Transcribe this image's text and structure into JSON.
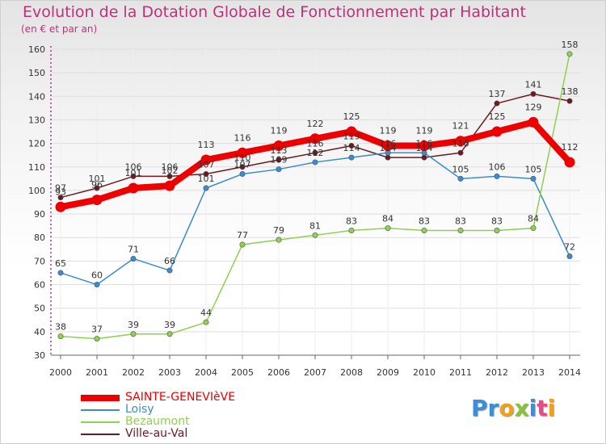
{
  "chart_data": {
    "type": "line",
    "title": "Evolution de la Dotation Globale de Fonctionnement par Habitant",
    "subtitle": "(en € et par an)",
    "x": [
      "2000",
      "2001",
      "2002",
      "2003",
      "2004",
      "2005",
      "2006",
      "2007",
      "2008",
      "2009",
      "2010",
      "2011",
      "2012",
      "2013",
      "2014"
    ],
    "ylim": [
      30,
      160
    ],
    "yticks": [
      30,
      40,
      50,
      60,
      70,
      80,
      90,
      100,
      110,
      120,
      130,
      140,
      150,
      160
    ],
    "series": [
      {
        "name": "Ville-au-Val",
        "color": "#6b1a22",
        "values": [
          97,
          101,
          106,
          106,
          107,
          110,
          113,
          116,
          119,
          114,
          114,
          116,
          137,
          141,
          138
        ]
      },
      {
        "name": "Loisy",
        "color": "#3a8ccf",
        "values": [
          65,
          60,
          71,
          66,
          101,
          107,
          109,
          112,
          114,
          116,
          116,
          105,
          106,
          105,
          72
        ]
      },
      {
        "name": "Bezaumont",
        "color": "#8fd14f",
        "values": [
          38,
          37,
          39,
          39,
          44,
          77,
          79,
          81,
          83,
          84,
          83,
          83,
          83,
          84,
          158
        ]
      },
      {
        "name": "SAINTE-GENEVIèVE",
        "color": "#ee0000",
        "values": [
          93,
          96,
          101,
          102,
          113,
          116,
          119,
          122,
          125,
          119,
          119,
          121,
          125,
          129,
          112
        ]
      }
    ],
    "legend": [
      "SAINTE-GENEVIèVE",
      "Loisy",
      "Bezaumont",
      "Ville-au-Val"
    ]
  },
  "legend_colors": [
    "#ee0000",
    "#3a8ccf",
    "#8fd14f",
    "#6b1a22"
  ],
  "logo": {
    "p": "Pr",
    "o": "o",
    "x": "x",
    "i": "i",
    "t": "t",
    "i2": "i"
  }
}
